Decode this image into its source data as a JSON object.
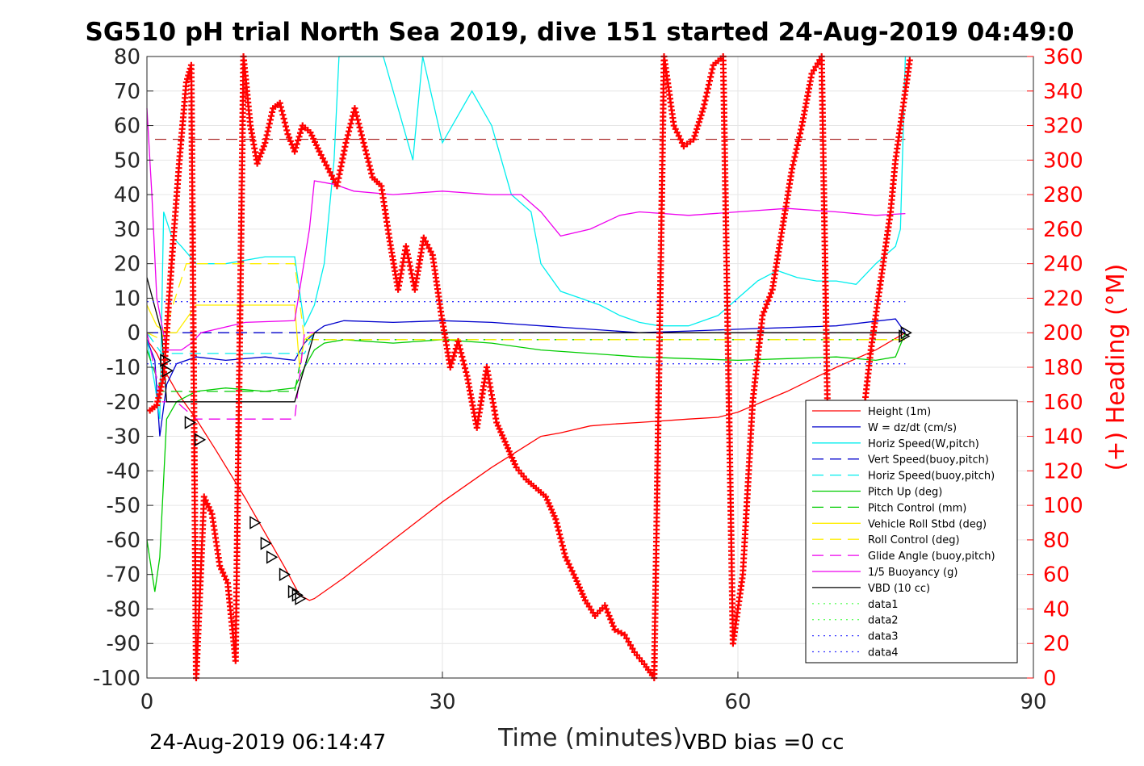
{
  "chart_data": {
    "type": "line",
    "title": "SG510 pH trial North Sea 2019, dive 151 started 24-Aug-2019 04:49:0",
    "xlabel": "Time (minutes)",
    "ylabel_right": "(+) Heading (°M)",
    "xlim": [
      0,
      90
    ],
    "ylim": [
      -100,
      80
    ],
    "ylim_right": [
      0,
      360
    ],
    "x_ticks": [
      "0",
      "30",
      "60",
      "90"
    ],
    "y_ticks": [
      "80",
      "70",
      "60",
      "50",
      "40",
      "30",
      "20",
      "10",
      "0",
      "-10",
      "-20",
      "-30",
      "-40",
      "-50",
      "-60",
      "-70",
      "-80",
      "-90",
      "-100"
    ],
    "y_right_ticks": [
      "360",
      "340",
      "320",
      "300",
      "280",
      "260",
      "240",
      "220",
      "200",
      "180",
      "160",
      "140",
      "120",
      "100",
      "80",
      "60",
      "40",
      "20",
      "0"
    ],
    "grid": true,
    "legend_position": "lower-right",
    "footer_left": "24-Aug-2019 06:14:47",
    "footer_right": "VBD bias =0 cc",
    "series": [
      {
        "name": "Height (1m)",
        "color": "#ff0000",
        "style": "solid",
        "x": [
          0,
          1,
          2,
          3,
          5,
          7,
          10,
          12,
          14,
          15.5,
          16.5,
          17,
          20,
          25,
          30,
          35,
          40,
          42,
          45,
          47,
          50,
          55,
          58,
          60,
          65,
          70,
          74,
          77
        ],
        "y": [
          -2,
          -6,
          -12,
          -17,
          -25,
          -34,
          -48,
          -58,
          -68,
          -76,
          -77.5,
          -77,
          -71,
          -60,
          -49,
          -39,
          -30,
          -29,
          -27,
          -26.5,
          -26,
          -25,
          -24.5,
          -23,
          -17,
          -10,
          -5,
          0
        ]
      },
      {
        "name": "W = dz/dt (cm/s)",
        "color": "#0000cc",
        "style": "solid",
        "x": [
          0,
          0.8,
          1.3,
          2,
          3,
          5,
          8,
          12,
          15,
          16,
          17,
          18,
          20,
          25,
          30,
          35,
          40,
          45,
          50,
          55,
          60,
          65,
          70,
          76,
          77
        ],
        "y": [
          -2,
          -8,
          -30,
          -15,
          -9,
          -7,
          -8,
          -7,
          -8,
          -3,
          0,
          2,
          3.5,
          3,
          3.5,
          3,
          2,
          1,
          0,
          0.5,
          1,
          1.5,
          2,
          4,
          0
        ]
      },
      {
        "name": "Horiz Speed(W,pitch)",
        "color": "#00eeee",
        "style": "solid",
        "x": [
          0,
          0.8,
          1.3,
          1.7,
          2.5,
          3.5,
          5,
          8,
          12,
          15,
          16,
          17,
          18,
          19,
          19.5,
          20,
          24,
          27,
          28,
          30,
          33,
          35,
          37,
          39,
          40,
          42,
          44,
          46,
          48,
          50,
          52,
          55,
          58,
          60,
          62,
          64,
          66,
          68,
          70,
          72,
          74,
          76,
          76.5,
          77
        ],
        "y": [
          -2,
          -15,
          -25,
          35,
          28,
          25,
          20,
          20,
          22,
          22,
          2,
          8,
          20,
          50,
          80,
          80,
          80,
          50,
          80,
          55,
          70,
          60,
          40,
          35,
          20,
          12,
          10,
          8,
          5,
          3,
          2,
          2,
          5,
          10,
          15,
          18,
          16,
          15,
          15,
          14,
          20,
          25,
          30,
          80
        ]
      },
      {
        "name": "Vert Speed(buoy,pitch)",
        "color": "#0000cc",
        "style": "dashed",
        "x": [
          0,
          77
        ],
        "y": [
          0,
          0
        ]
      },
      {
        "name": "Horiz Speed(buoy,pitch)",
        "color": "#00eeee",
        "style": "dashed",
        "x": [
          0,
          1.5,
          3,
          15,
          16,
          17,
          77
        ],
        "y": [
          0,
          -6,
          -6,
          -6,
          -6,
          0,
          0
        ]
      },
      {
        "name": "Pitch Up (deg)",
        "color": "#00cc00",
        "style": "solid",
        "x": [
          0,
          0.8,
          1.3,
          2,
          3,
          5,
          8,
          12,
          15,
          16,
          17,
          18,
          20,
          25,
          30,
          35,
          40,
          45,
          50,
          55,
          60,
          65,
          70,
          74,
          76,
          77
        ],
        "y": [
          -60,
          -75,
          -65,
          -25,
          -20,
          -17,
          -16,
          -17,
          -16,
          -10,
          -5,
          -3,
          -2,
          -3,
          -2,
          -3,
          -5,
          -6,
          -7,
          -7.5,
          -8,
          -7.5,
          -7,
          -8,
          -7,
          0
        ]
      },
      {
        "name": "Pitch Control (mm)",
        "color": "#00cc00",
        "style": "dashed",
        "x": [
          0,
          1.5,
          3,
          15,
          16,
          77
        ],
        "y": [
          -5,
          -17,
          -17,
          -17,
          -2,
          -2
        ]
      },
      {
        "name": "Vehicle Roll Stbd (deg)",
        "color": "#ffee00",
        "style": "solid",
        "x": [
          0,
          1,
          2,
          3,
          5,
          8,
          12,
          15,
          15.5,
          16,
          17,
          77
        ],
        "y": [
          8,
          2,
          0,
          0,
          8,
          8,
          8,
          8,
          -10,
          -2,
          0,
          0
        ]
      },
      {
        "name": "Roll Control (deg)",
        "color": "#ffee00",
        "style": "dashed",
        "x": [
          0,
          1.5,
          4,
          15,
          16,
          77
        ],
        "y": [
          0,
          -2,
          20,
          20,
          -2,
          -2
        ]
      },
      {
        "name": "Glide Angle (buoy,pitch)",
        "color": "#ee00ee",
        "style": "dashed",
        "x": [
          0,
          1.5,
          3,
          5,
          15,
          16,
          77
        ],
        "y": [
          0,
          -20,
          -20,
          -25,
          -25,
          0,
          0
        ]
      },
      {
        "name": "1/5 Buoyancy (g)",
        "color": "#ee00ee",
        "style": "solid",
        "x": [
          0,
          0.5,
          1,
          2,
          3.5,
          4.5,
          5.5,
          10,
          15,
          16.5,
          17,
          19,
          21,
          25,
          30,
          35,
          38,
          40,
          42,
          45,
          48,
          50,
          55,
          60,
          65,
          70,
          74,
          77
        ],
        "y": [
          65,
          40,
          10,
          -5,
          -5,
          -3,
          0,
          3,
          3.5,
          30,
          44,
          43,
          41,
          40,
          41,
          40,
          40,
          35,
          28,
          30,
          34,
          35,
          34,
          35,
          36,
          35,
          34,
          34.5
        ]
      },
      {
        "name": "VBD (10 cc)",
        "color": "#000000",
        "style": "solid",
        "x": [
          0,
          1.5,
          2,
          15,
          16,
          17,
          77
        ],
        "y": [
          16,
          0,
          -20,
          -20,
          -10,
          0,
          0
        ]
      },
      {
        "name": "data1",
        "color": "#66ff66",
        "style": "dotted",
        "x": [],
        "y": []
      },
      {
        "name": "data2",
        "color": "#66ff66",
        "style": "dotted",
        "x": [],
        "y": []
      },
      {
        "name": "data3",
        "color": "#3333ff",
        "style": "dotted",
        "x": [
          0,
          77
        ],
        "y": [
          9,
          9
        ]
      },
      {
        "name": "data4",
        "color": "#3333ff",
        "style": "dotted",
        "x": [
          0,
          77
        ],
        "y": [
          -9,
          -9
        ]
      }
    ],
    "heading": {
      "axis": "right",
      "color": "#ff0000",
      "marker": "+",
      "x": [
        0.3,
        1.0,
        1.7,
        2.5,
        3.3,
        4.0,
        4.5,
        5.0,
        5.8,
        6.6,
        7.4,
        8.2,
        9.0,
        9.8,
        10.5,
        11.2,
        12.0,
        12.8,
        13.5,
        14.3,
        15.0,
        15.8,
        16.6,
        17.5,
        18.4,
        19.3,
        20.2,
        21.1,
        22.0,
        22.9,
        23.8,
        24.6,
        25.5,
        26.3,
        27.2,
        28.1,
        29.0,
        29.9,
        30.8,
        31.6,
        32.5,
        33.5,
        34.5,
        35.5,
        36.5,
        37.5,
        38.5,
        39.5,
        40.5,
        41.5,
        42.5,
        43.5,
        44.5,
        45.5,
        46.5,
        47.5,
        48.5,
        49.5,
        50.5,
        51.5,
        52.5,
        53.5,
        54.5,
        55.5,
        56.5,
        57.5,
        58.5,
        59.5,
        60.5,
        61.5,
        62.5,
        63.5,
        64.5,
        65.5,
        66.5,
        67.5,
        68.5,
        69.5,
        70.5,
        71.5,
        72.5,
        73.5,
        74.5,
        75.5,
        76.0,
        76.5,
        77.0,
        77.5
      ],
      "y": [
        155,
        158,
        175,
        240,
        300,
        345,
        355,
        0,
        105,
        95,
        65,
        55,
        10,
        360,
        320,
        298,
        310,
        330,
        333,
        315,
        305,
        320,
        316,
        305,
        295,
        285,
        310,
        330,
        310,
        290,
        285,
        255,
        225,
        250,
        225,
        255,
        245,
        210,
        180,
        195,
        175,
        145,
        180,
        148,
        135,
        122,
        115,
        110,
        105,
        92,
        70,
        58,
        45,
        36,
        42,
        28,
        25,
        15,
        8,
        0,
        360,
        320,
        308,
        312,
        330,
        355,
        360,
        20,
        60,
        160,
        210,
        225,
        260,
        295,
        320,
        350,
        360,
        20,
        60,
        100,
        140,
        190,
        230,
        270,
        300,
        320,
        340,
        360
      ],
      "segments": [
        [
          0,
          8
        ],
        [
          8,
          13
        ],
        [
          13,
          60
        ],
        [
          60,
          66
        ],
        [
          66,
          75
        ],
        [
          75,
          88
        ]
      ]
    },
    "reference_lines": [
      {
        "label": "",
        "y": 56,
        "color": "#990000",
        "style": "dashed"
      }
    ],
    "vbd_markers": {
      "x": [
        1.8,
        2.0,
        4.3,
        5.3,
        10.9,
        12.0,
        12.6,
        13.9,
        14.8,
        15.2,
        15.5,
        76.8,
        77.0
      ],
      "y": [
        -8,
        -11,
        -26,
        -31,
        -55,
        -61,
        -65,
        -70,
        -75,
        -76,
        -77,
        -1,
        0
      ]
    }
  }
}
